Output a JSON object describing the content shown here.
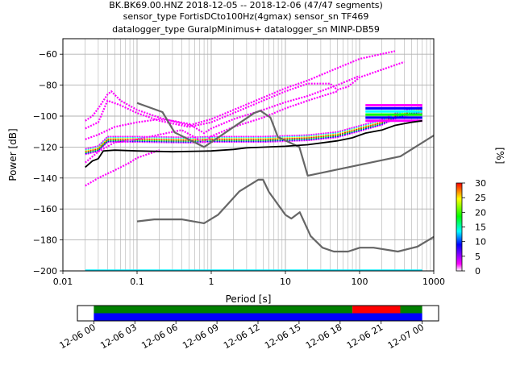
{
  "chart_data": [
    {
      "type": "heatmap",
      "title_lines": [
        "BK.BK69.00.HNZ   2018-12-05 -- 2018-12-06  (47/47 segments)",
        "sensor_type FortisDCto100Hz(4gmax) sensor_sn TF469",
        "datalogger_type GuralpMinimus+ datalogger_sn MINP-DB59"
      ],
      "xlabel": "Period [s]",
      "ylabel": "Power [dB]",
      "xscale": "log",
      "xlim": [
        0.01,
        1000
      ],
      "ylim": [
        -200,
        -50
      ],
      "x_ticks": [
        0.01,
        0.1,
        1,
        10,
        100,
        1000
      ],
      "x_tick_labels": [
        "0.01",
        "0.1",
        "1",
        "10",
        "100",
        "1000"
      ],
      "y_ticks": [
        -200,
        -180,
        -160,
        -140,
        -120,
        -100,
        -80,
        -60
      ],
      "y_tick_labels": [
        "−200",
        "−180",
        "−160",
        "−140",
        "−120",
        "−100",
        "−80",
        "−60"
      ],
      "grid": true,
      "colorbar": {
        "label": "[%]",
        "range": [
          0,
          30
        ],
        "ticks": [
          0,
          5,
          10,
          15,
          20,
          25,
          30
        ],
        "tick_labels": [
          "0",
          "5",
          "10",
          "15",
          "20",
          "25",
          "30"
        ],
        "colormap": [
          "#ffffff",
          "#ff00ff",
          "#0000ff",
          "#00ffff",
          "#00ff00",
          "#ffff00",
          "#ff0000"
        ]
      },
      "noise_models": [
        {
          "id": "high-noise-model",
          "color": "#666666",
          "points": [
            [
              0.1,
              -91.5
            ],
            [
              0.22,
              -97.4
            ],
            [
              0.32,
              -110.5
            ],
            [
              0.8,
              -120
            ],
            [
              3.8,
              -98
            ],
            [
              4.6,
              -96.5
            ],
            [
              6.3,
              -101
            ],
            [
              7.9,
              -113.5
            ],
            [
              15.4,
              -120
            ],
            [
              20,
              -138.5
            ],
            [
              354.8,
              -126
            ],
            [
              1000,
              -112.5
            ]
          ]
        },
        {
          "id": "low-noise-model",
          "color": "#666666",
          "points": [
            [
              0.1,
              -168
            ],
            [
              0.17,
              -166.7
            ],
            [
              0.4,
              -166.7
            ],
            [
              0.8,
              -169.2
            ],
            [
              1.24,
              -163.7
            ],
            [
              2.4,
              -148.6
            ],
            [
              4.3,
              -141.1
            ],
            [
              5,
              -141.1
            ],
            [
              6,
              -149
            ],
            [
              10,
              -163.8
            ],
            [
              12,
              -166.2
            ],
            [
              15.6,
              -162.1
            ],
            [
              21.9,
              -177.5
            ],
            [
              31.6,
              -185
            ],
            [
              45,
              -187.5
            ],
            [
              70,
              -187.5
            ],
            [
              101,
              -185
            ],
            [
              154,
              -185
            ],
            [
              328,
              -187.5
            ],
            [
              600,
              -184.4
            ],
            [
              1000,
              -178
            ]
          ]
        }
      ],
      "mean_curve": {
        "id": "mean-psd",
        "color": "#000000",
        "points": [
          [
            0.02,
            -133
          ],
          [
            0.025,
            -129
          ],
          [
            0.03,
            -127.5
          ],
          [
            0.035,
            -122.5
          ],
          [
            0.05,
            -122
          ],
          [
            0.1,
            -122.5
          ],
          [
            0.3,
            -123
          ],
          [
            1,
            -122.5
          ],
          [
            2,
            -121.5
          ],
          [
            3,
            -120.5
          ],
          [
            10,
            -119.5
          ],
          [
            20,
            -118.5
          ],
          [
            50,
            -116
          ],
          [
            80,
            -114
          ],
          [
            120,
            -111
          ],
          [
            200,
            -109
          ],
          [
            300,
            -106
          ],
          [
            500,
            -104
          ],
          [
            700,
            -103
          ]
        ]
      },
      "psd_bands": [
        {
          "id": "band-dominant",
          "color_role": "high",
          "points": [
            [
              0.02,
              -123
            ],
            [
              0.03,
              -121
            ],
            [
              0.04,
              -115
            ],
            [
              0.06,
              -115
            ],
            [
              0.1,
              -115
            ],
            [
              0.5,
              -115.5
            ],
            [
              1,
              -115
            ],
            [
              5,
              -115
            ],
            [
              20,
              -114
            ],
            [
              50,
              -112
            ],
            [
              100,
              -108
            ],
            [
              200,
              -104
            ],
            [
              300,
              -100
            ],
            [
              500,
              -97
            ],
            [
              700,
              -96
            ]
          ]
        },
        {
          "id": "band-upper-a",
          "color_role": "low",
          "points": [
            [
              0.02,
              -103
            ],
            [
              0.025,
              -100
            ],
            [
              0.03,
              -95
            ],
            [
              0.04,
              -86
            ],
            [
              0.045,
              -84
            ],
            [
              0.06,
              -90
            ],
            [
              0.1,
              -96
            ],
            [
              0.2,
              -101
            ],
            [
              0.5,
              -106
            ],
            [
              1,
              -102
            ],
            [
              2,
              -96
            ],
            [
              5,
              -88
            ],
            [
              10,
              -82
            ],
            [
              20,
              -77
            ],
            [
              50,
              -69
            ],
            [
              100,
              -63
            ],
            [
              300,
              -58
            ]
          ]
        },
        {
          "id": "band-upper-b",
          "color_role": "low",
          "points": [
            [
              0.02,
              -108
            ],
            [
              0.03,
              -104
            ],
            [
              0.04,
              -90
            ],
            [
              0.06,
              -93
            ],
            [
              0.1,
              -98
            ],
            [
              0.2,
              -103
            ],
            [
              0.5,
              -107
            ],
            [
              1,
              -104
            ],
            [
              2,
              -98
            ],
            [
              5,
              -90
            ],
            [
              10,
              -84
            ],
            [
              20,
              -79
            ],
            [
              40,
              -79
            ],
            [
              50,
              -83
            ],
            [
              70,
              -81
            ],
            [
              100,
              -75
            ],
            [
              200,
              -70
            ],
            [
              400,
              -65
            ]
          ]
        },
        {
          "id": "band-mid-a",
          "color_role": "low",
          "points": [
            [
              0.02,
              -115
            ],
            [
              0.03,
              -112
            ],
            [
              0.05,
              -107
            ],
            [
              0.1,
              -104
            ],
            [
              0.2,
              -102
            ],
            [
              0.3,
              -103
            ],
            [
              0.5,
              -105
            ],
            [
              0.8,
              -111
            ],
            [
              1,
              -108
            ],
            [
              2,
              -102
            ],
            [
              5,
              -96
            ],
            [
              10,
              -91
            ],
            [
              20,
              -87
            ],
            [
              50,
              -80
            ],
            [
              100,
              -74
            ]
          ]
        },
        {
          "id": "band-mid-b",
          "color_role": "low",
          "points": [
            [
              0.02,
              -130
            ],
            [
              0.03,
              -123
            ],
            [
              0.05,
              -117
            ],
            [
              0.1,
              -115
            ],
            [
              0.2,
              -112
            ],
            [
              0.4,
              -109
            ],
            [
              0.8,
              -117
            ],
            [
              1,
              -113
            ],
            [
              2,
              -107
            ],
            [
              5,
              -101
            ],
            [
              10,
              -95
            ],
            [
              20,
              -90
            ],
            [
              50,
              -84
            ]
          ]
        },
        {
          "id": "band-lower",
          "color_role": "low",
          "points": [
            [
              0.02,
              -145
            ],
            [
              0.03,
              -140
            ],
            [
              0.05,
              -135
            ],
            [
              0.08,
              -130
            ],
            [
              0.1,
              -127
            ],
            [
              0.2,
              -122
            ]
          ]
        }
      ],
      "long_period_stack": {
        "period_range": [
          120,
          700
        ],
        "levels": [
          {
            "power": -93,
            "color": "#ff00ff"
          },
          {
            "power": -95,
            "color": "#0000ff"
          },
          {
            "power": -97,
            "color": "#00ffff"
          },
          {
            "power": -99,
            "color": "#00ff00"
          },
          {
            "power": -101,
            "color": "#0000ff"
          },
          {
            "power": -103,
            "color": "#ff00ff"
          }
        ]
      },
      "baseline": {
        "power": -200,
        "color": "#00e5ff"
      }
    },
    {
      "type": "timeline",
      "x_tick_labels": [
        "12-06 00",
        "12-06 03",
        "12-06 06",
        "12-06 09",
        "12-06 12",
        "12-06 15",
        "12-06 18",
        "12-06 21",
        "12-07 00"
      ],
      "x_ticks_hours": [
        0,
        3,
        6,
        9,
        12,
        15,
        18,
        21,
        24
      ],
      "xlim_hours": [
        -1.2,
        25.2
      ],
      "data_window_hours": [
        0,
        24
      ],
      "rows": [
        {
          "id": "availability-upper",
          "segments": [
            {
              "start": 0,
              "end": 18.9,
              "color": "#008000"
            },
            {
              "start": 18.9,
              "end": 22.4,
              "color": "#ff0000"
            },
            {
              "start": 22.4,
              "end": 24,
              "color": "#008000"
            }
          ]
        },
        {
          "id": "availability-lower",
          "segments": [
            {
              "start": 0,
              "end": 24,
              "color": "#0000ff"
            }
          ]
        }
      ]
    }
  ]
}
